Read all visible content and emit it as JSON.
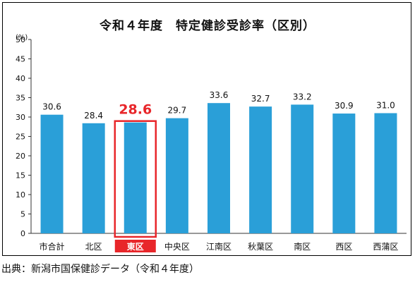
{
  "chart_data": {
    "type": "bar",
    "title": "令和４年度　特定健診受診率（区別）",
    "unit_label": "(%)",
    "categories": [
      "市合計",
      "北区",
      "東区",
      "中央区",
      "江南区",
      "秋葉区",
      "南区",
      "西区",
      "西蒲区"
    ],
    "values": [
      30.6,
      28.4,
      28.6,
      29.7,
      33.6,
      32.7,
      33.2,
      30.9,
      31.0
    ],
    "value_labels": [
      "30.6",
      "28.4",
      "28.6",
      "29.7",
      "33.6",
      "32.7",
      "33.2",
      "30.9",
      "31.0"
    ],
    "highlight_index": 2,
    "ylim": [
      0,
      50
    ],
    "yticks": [
      "0",
      "5",
      "10",
      "15",
      "20",
      "25",
      "30",
      "35",
      "40",
      "45",
      "50"
    ],
    "grid": false,
    "legend": "none",
    "colors": {
      "bar": "#2a9fd8",
      "highlight": "#e8262a",
      "axis": "#333333",
      "text": "#111111"
    }
  },
  "source_note": "出典：新潟市国保健診データ（令和４年度）"
}
